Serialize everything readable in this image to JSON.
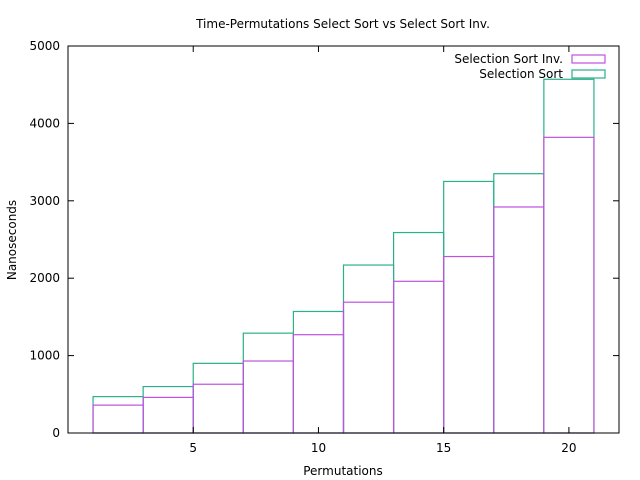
{
  "chart_data": {
    "type": "bar",
    "title": "Time-Permutations Select Sort vs Select Sort Inv.",
    "xlabel": "Permutations",
    "ylabel": "Nanoseconds",
    "xlim": [
      0,
      22
    ],
    "ylim": [
      0,
      5000
    ],
    "xticks": [
      5,
      10,
      15,
      20
    ],
    "yticks": [
      0,
      1000,
      2000,
      3000,
      4000,
      5000
    ],
    "bar_width": 2,
    "x": [
      2,
      4,
      6,
      8,
      10,
      12,
      14,
      16,
      18,
      20
    ],
    "grid": false,
    "legend": "top-right",
    "series": [
      {
        "name": "Selection Sort Inv.",
        "color": "#c050e0",
        "values": [
          360,
          460,
          630,
          930,
          1270,
          1690,
          1960,
          2280,
          2920,
          3820
        ]
      },
      {
        "name": "Selection Sort",
        "color": "#2ab08a",
        "values": [
          470,
          600,
          900,
          1290,
          1570,
          2170,
          2590,
          3250,
          3350,
          4570
        ]
      }
    ]
  }
}
